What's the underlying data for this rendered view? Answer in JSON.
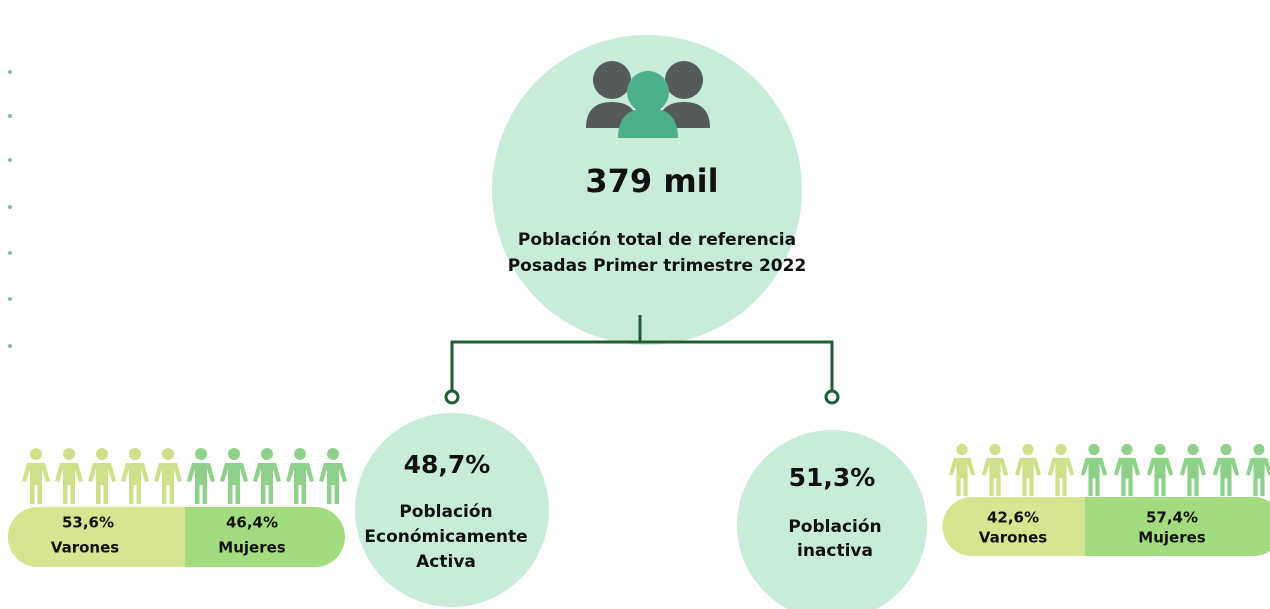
{
  "total": {
    "value": "379 mil",
    "label_line1": "Población total de referencia",
    "label_line2": "Posadas Primer trimestre 2022"
  },
  "active": {
    "percent": "48,7%",
    "label_line1": "Población",
    "label_line2": "Económicamente",
    "label_line3": "Activa",
    "men": {
      "percent": "53,6%",
      "label": "Varones"
    },
    "women": {
      "percent": "46,4%",
      "label": "Mujeres"
    }
  },
  "inactive": {
    "percent": "51,3%",
    "label_line1": "Población",
    "label_line2": "inactiva",
    "men": {
      "percent": "42,6%",
      "label": "Varones"
    },
    "women": {
      "percent": "57,4%",
      "label": "Mujeres"
    }
  }
}
